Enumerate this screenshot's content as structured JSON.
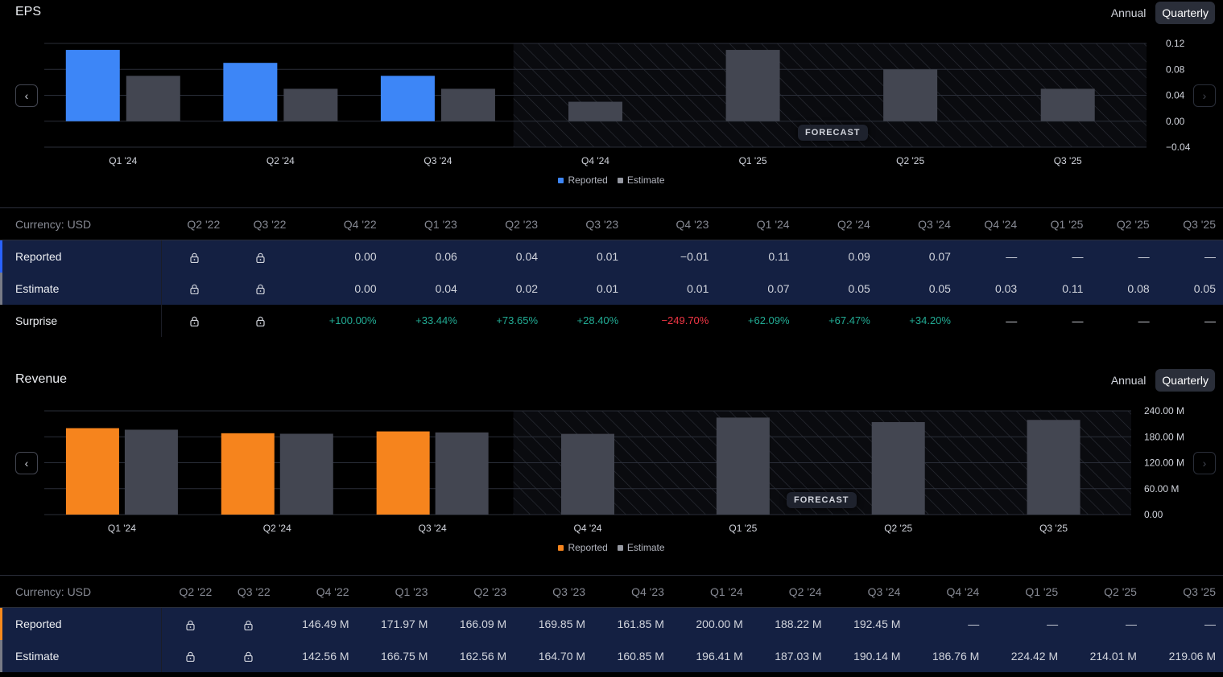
{
  "eps": {
    "title": "EPS",
    "toggle": {
      "annual": "Annual",
      "quarterly": "Quarterly"
    },
    "forecast_label": "FORECAST",
    "legend": {
      "reported": "Reported",
      "estimate": "Estimate"
    },
    "table": {
      "currency": "Currency: USD",
      "columns": [
        "Q2 '22",
        "Q3 '22",
        "Q4 '22",
        "Q1 '23",
        "Q2 '23",
        "Q3 '23",
        "Q4 '23",
        "Q1 '24",
        "Q2 '24",
        "Q3 '24",
        "Q4 '24",
        "Q1 '25",
        "Q2 '25",
        "Q3 '25"
      ],
      "rows": [
        {
          "label": "Reported",
          "values": [
            "lock",
            "lock",
            "0.00",
            "0.06",
            "0.04",
            "0.01",
            "−0.01",
            "0.11",
            "0.09",
            "0.07",
            "—",
            "—",
            "—",
            "—"
          ]
        },
        {
          "label": "Estimate",
          "values": [
            "lock",
            "lock",
            "0.00",
            "0.04",
            "0.02",
            "0.01",
            "0.01",
            "0.07",
            "0.05",
            "0.05",
            "0.03",
            "0.11",
            "0.08",
            "0.05"
          ]
        },
        {
          "label": "Surprise",
          "values": [
            "lock",
            "lock",
            "+100.00%",
            "+33.44%",
            "+73.65%",
            "+28.40%",
            "−249.70%",
            "+62.09%",
            "+67.47%",
            "+34.20%",
            "—",
            "—",
            "—",
            "—"
          ]
        }
      ]
    }
  },
  "revenue": {
    "title": "Revenue",
    "toggle": {
      "annual": "Annual",
      "quarterly": "Quarterly"
    },
    "forecast_label": "FORECAST",
    "legend": {
      "reported": "Reported",
      "estimate": "Estimate"
    },
    "table": {
      "currency": "Currency: USD",
      "columns": [
        "Q2 '22",
        "Q3 '22",
        "Q4 '22",
        "Q1 '23",
        "Q2 '23",
        "Q3 '23",
        "Q4 '23",
        "Q1 '24",
        "Q2 '24",
        "Q3 '24",
        "Q4 '24",
        "Q1 '25",
        "Q2 '25",
        "Q3 '25"
      ],
      "rows": [
        {
          "label": "Reported",
          "values": [
            "lock",
            "lock",
            "146.49 M",
            "171.97 M",
            "166.09 M",
            "169.85 M",
            "161.85 M",
            "200.00 M",
            "188.22 M",
            "192.45 M",
            "—",
            "—",
            "—",
            "—"
          ]
        },
        {
          "label": "Estimate",
          "values": [
            "lock",
            "lock",
            "142.56 M",
            "166.75 M",
            "162.56 M",
            "164.70 M",
            "160.85 M",
            "196.41 M",
            "187.03 M",
            "190.14 M",
            "186.76 M",
            "224.42 M",
            "214.01 M",
            "219.06 M"
          ]
        }
      ]
    }
  },
  "colors": {
    "eps_reported": "#3d86f7",
    "rev_reported": "#f6841d",
    "estimate": "#434651",
    "bg": "#000000"
  },
  "chart_data": [
    {
      "type": "bar",
      "categories": [
        "Q1 '24",
        "Q2 '24",
        "Q3 '24",
        "Q4 '24",
        "Q1 '25",
        "Q2 '25",
        "Q3 '25"
      ],
      "series": [
        {
          "name": "Reported",
          "values": [
            0.11,
            0.09,
            0.07,
            null,
            null,
            null,
            null
          ]
        },
        {
          "name": "Estimate",
          "values": [
            0.07,
            0.05,
            0.05,
            0.03,
            0.11,
            0.08,
            0.05
          ]
        }
      ],
      "yticks": [
        "0.12",
        "0.08",
        "0.04",
        "0.00",
        "−0.04"
      ],
      "ylim": [
        -0.04,
        0.12
      ],
      "forecast_from": "Q4 '24",
      "legend_position": "bottom"
    },
    {
      "type": "bar",
      "categories": [
        "Q1 '24",
        "Q2 '24",
        "Q3 '24",
        "Q4 '24",
        "Q1 '25",
        "Q2 '25",
        "Q3 '25"
      ],
      "series": [
        {
          "name": "Reported",
          "values": [
            200.0,
            188.22,
            192.45,
            null,
            null,
            null,
            null
          ]
        },
        {
          "name": "Estimate",
          "values": [
            196.41,
            187.03,
            190.14,
            186.76,
            224.42,
            214.01,
            219.06
          ]
        }
      ],
      "yticks": [
        "240.00 M",
        "180.00 M",
        "120.00 M",
        "60.00 M",
        "0.00"
      ],
      "ylim": [
        0,
        240
      ],
      "forecast_from": "Q4 '24",
      "legend_position": "bottom"
    }
  ]
}
